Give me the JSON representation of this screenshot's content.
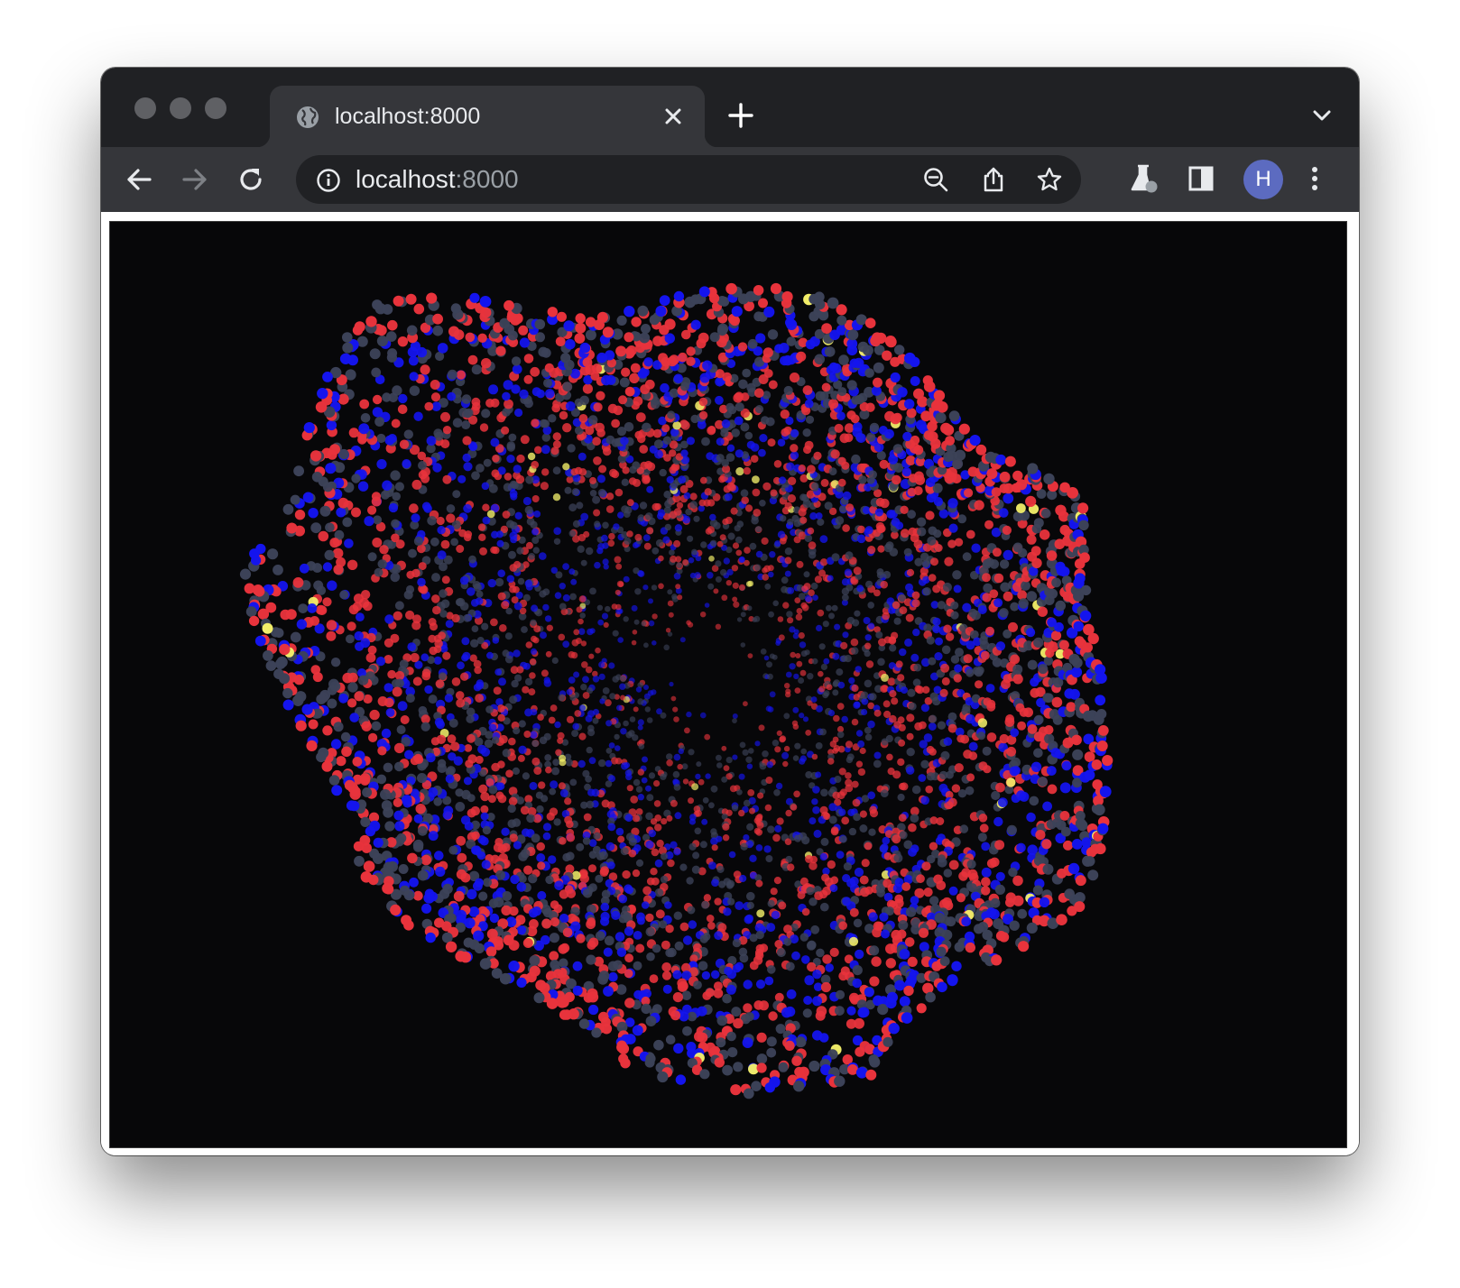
{
  "window": {
    "controls": [
      "close",
      "minimize",
      "zoom"
    ]
  },
  "tab": {
    "title": "localhost:8000",
    "favicon": "globe-icon",
    "close_icon": "close-icon"
  },
  "tabstrip": {
    "new_tab_icon": "plus-icon",
    "tab_search_icon": "chevron-down-icon"
  },
  "toolbar": {
    "back_icon": "arrow-left-icon",
    "forward_icon": "arrow-right-icon",
    "reload_icon": "reload-icon",
    "omnibox": {
      "info_icon": "info-icon",
      "url_host": "localhost",
      "url_port": ":8000",
      "zoom_icon": "zoom-out-icon",
      "share_icon": "share-icon",
      "bookmark_icon": "star-icon"
    },
    "labs_icon": "flask-icon",
    "side_panel_icon": "side-panel-icon",
    "profile_initial": "H",
    "menu_icon": "kebab-menu-icon"
  },
  "colors": {
    "atom_red": "#e8333c",
    "atom_blue": "#1414ee",
    "atom_slate": "#3c4258",
    "atom_yellow": "#f4f06a",
    "canvas_background": "#070709",
    "avatar": "#5c6bc0"
  }
}
